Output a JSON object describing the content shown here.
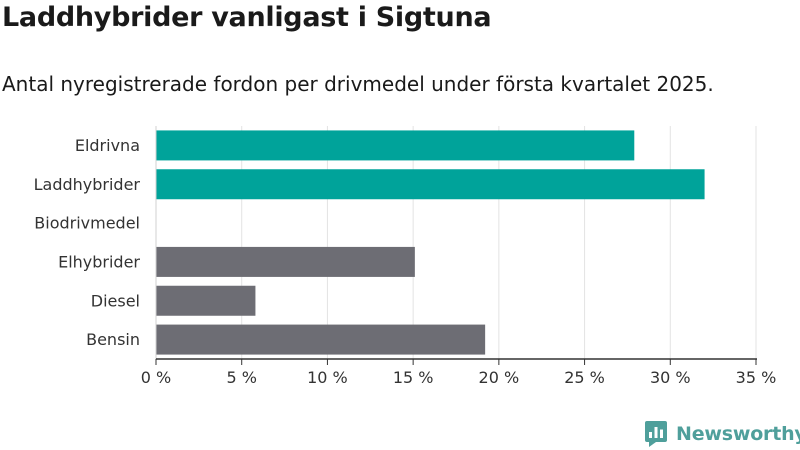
{
  "chart_data": {
    "type": "bar",
    "orientation": "horizontal",
    "title": "Laddhybrider vanligast i Sigtuna",
    "subtitle": "Antal nyregistrerade fordon per drivmedel under första kvartalet 2025.",
    "xlabel": "",
    "ylabel": "",
    "categories": [
      "Eldrivna",
      "Laddhybrider",
      "Biodrivmedel",
      "Elhybrider",
      "Diesel",
      "Bensin"
    ],
    "values": [
      27.9,
      32.0,
      0,
      15.1,
      5.8,
      19.2
    ],
    "bar_colors": [
      "#00a39a",
      "#00a39a",
      "#00a39a",
      "#6d6d74",
      "#6d6d74",
      "#6d6d74"
    ],
    "xlim": [
      0,
      35
    ],
    "xticks": [
      0,
      5,
      10,
      15,
      20,
      25,
      30,
      35
    ],
    "xtick_labels": [
      "0 %",
      "5 %",
      "10 %",
      "15 %",
      "20 %",
      "25 %",
      "30 %",
      "35 %"
    ],
    "grid": true,
    "legend": "none"
  },
  "brand": {
    "name": "Newsworthy",
    "icon": "newsworthy-logo-icon",
    "color": "#4f9f9b"
  }
}
